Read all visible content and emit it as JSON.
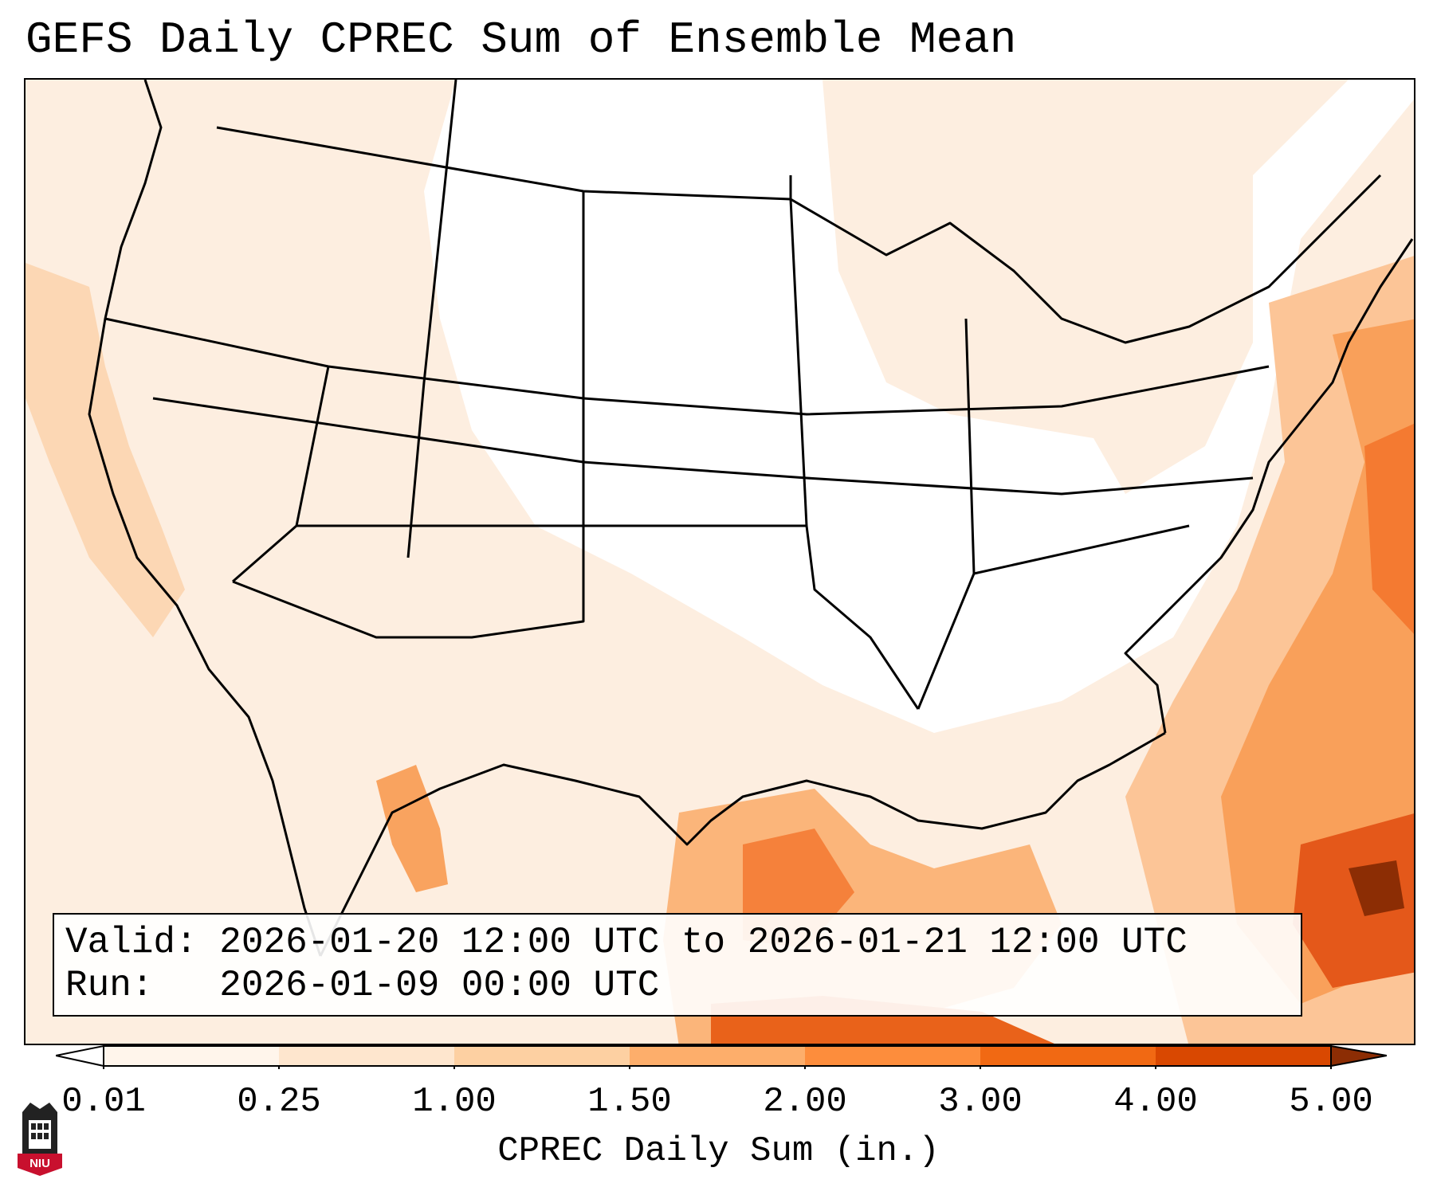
{
  "title": "GEFS Daily CPREC Sum of Ensemble Mean",
  "valid": {
    "label": "Valid:",
    "start": "2026-01-20 12:00 UTC",
    "connector": "to",
    "end": "2026-01-21 12:00 UTC"
  },
  "run": {
    "label": "Run:",
    "time": "2026-01-09 00:00 UTC"
  },
  "colorbar": {
    "title": "CPREC Daily Sum (in.)",
    "ticks": [
      "0.01",
      "0.25",
      "1.00",
      "1.50",
      "2.00",
      "3.00",
      "4.00",
      "5.00"
    ],
    "colors": [
      "#fff5eb",
      "#fee6ce",
      "#fdd0a2",
      "#fdae6b",
      "#fd8d3c",
      "#f16913",
      "#d94801",
      "#8c2d04"
    ],
    "extend": "both"
  },
  "logo": {
    "text": "NIU",
    "icon": "niu-tower-icon"
  }
}
